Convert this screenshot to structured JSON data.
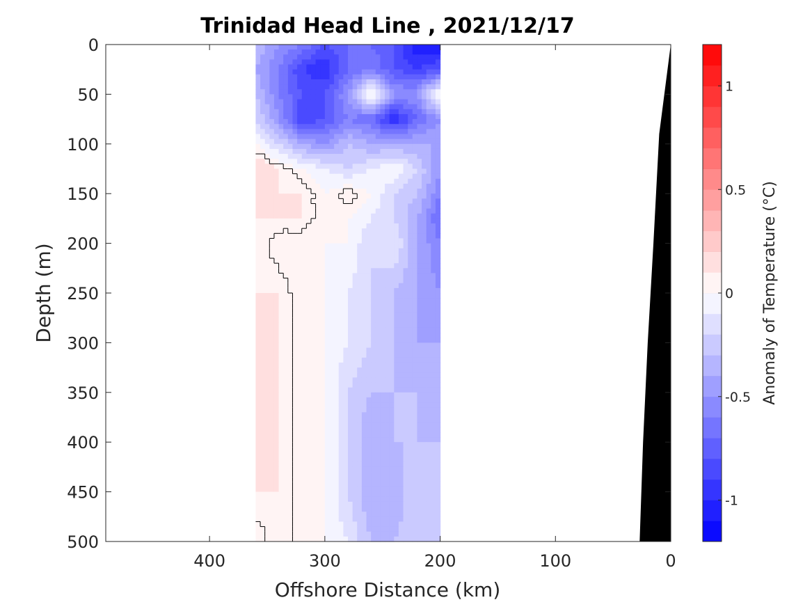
{
  "chart_data": {
    "type": "heatmap",
    "title": "Trinidad Head Line , 2021/12/17",
    "xlabel": "Offshore Distance (km)",
    "ylabel": "Depth (m)",
    "colorbar_label": "Anomaly of Temperature (°C)",
    "xlim": [
      490,
      0
    ],
    "ylim": [
      0,
      500
    ],
    "x_reversed": true,
    "y_reversed": true,
    "x_ticks": [
      400,
      300,
      200,
      100,
      0
    ],
    "y_ticks": [
      0,
      50,
      100,
      150,
      200,
      250,
      300,
      350,
      400,
      450,
      500
    ],
    "clim": [
      -1.2,
      1.2
    ],
    "colorbar_levels": 24,
    "colorbar_ticks": [
      1,
      0.5,
      0,
      -0.5,
      -1
    ],
    "colormap": {
      "negative": "#0000ff",
      "zero": "#ffffff",
      "positive": "#ff0000"
    },
    "data_extent_km": [
      360,
      200
    ],
    "zero_contour_color": "#000000",
    "bottom_bathymetry": {
      "color": "#000000",
      "points": [
        [
          0,
          0
        ],
        [
          10,
          90
        ],
        [
          15,
          200
        ],
        [
          20,
          300
        ],
        [
          24,
          400
        ],
        [
          27,
          500
        ]
      ]
    },
    "anomaly_depths_m": [
      0,
      25,
      50,
      75,
      100,
      125,
      150,
      175,
      200,
      250,
      300,
      350,
      400,
      450,
      500
    ],
    "anomaly_distances_km": [
      360,
      340,
      320,
      300,
      280,
      260,
      240,
      220,
      200
    ],
    "anomaly_values_degC": [
      [
        -0.3,
        -0.5,
        -0.6,
        -0.8,
        -0.7,
        -0.7,
        -0.8,
        -1.1,
        -1.1
      ],
      [
        -0.4,
        -0.6,
        -0.9,
        -1.0,
        -0.7,
        -0.6,
        -0.8,
        -0.9,
        -0.8
      ],
      [
        -0.3,
        -0.6,
        -0.8,
        -0.8,
        -0.5,
        0.1,
        -0.5,
        -0.5,
        0.1
      ],
      [
        -0.2,
        -0.5,
        -0.9,
        -0.8,
        -0.6,
        -0.7,
        -1.0,
        -0.7,
        -0.5
      ],
      [
        0.0,
        -0.2,
        -0.4,
        -0.5,
        -0.3,
        -0.4,
        -0.4,
        -0.4,
        -0.4
      ],
      [
        0.2,
        0.1,
        0.0,
        -0.1,
        -0.2,
        -0.1,
        0.0,
        -0.2,
        -0.5
      ],
      [
        0.2,
        0.1,
        0.1,
        0.0,
        0.1,
        0.0,
        -0.2,
        -0.3,
        -0.6
      ],
      [
        0.1,
        0.1,
        0.1,
        0.0,
        0.0,
        -0.1,
        -0.2,
        -0.4,
        -0.7
      ],
      [
        0.1,
        0.0,
        0.0,
        0.0,
        0.0,
        -0.2,
        -0.1,
        -0.4,
        -0.6
      ],
      [
        0.1,
        0.1,
        0.0,
        0.0,
        -0.1,
        -0.2,
        -0.3,
        -0.4,
        -0.5
      ],
      [
        0.1,
        0.1,
        0.0,
        0.0,
        -0.1,
        -0.2,
        -0.3,
        -0.4,
        -0.4
      ],
      [
        0.1,
        0.1,
        0.0,
        0.0,
        -0.2,
        -0.3,
        -0.3,
        -0.3,
        -0.4
      ],
      [
        0.2,
        0.1,
        0.0,
        0.0,
        -0.2,
        -0.4,
        -0.3,
        -0.3,
        -0.3
      ],
      [
        0.1,
        0.1,
        0.0,
        0.0,
        -0.2,
        -0.4,
        -0.4,
        -0.2,
        -0.3
      ],
      [
        0.0,
        0.1,
        0.0,
        0.0,
        -0.1,
        -0.3,
        -0.3,
        -0.2,
        -0.3
      ]
    ]
  }
}
